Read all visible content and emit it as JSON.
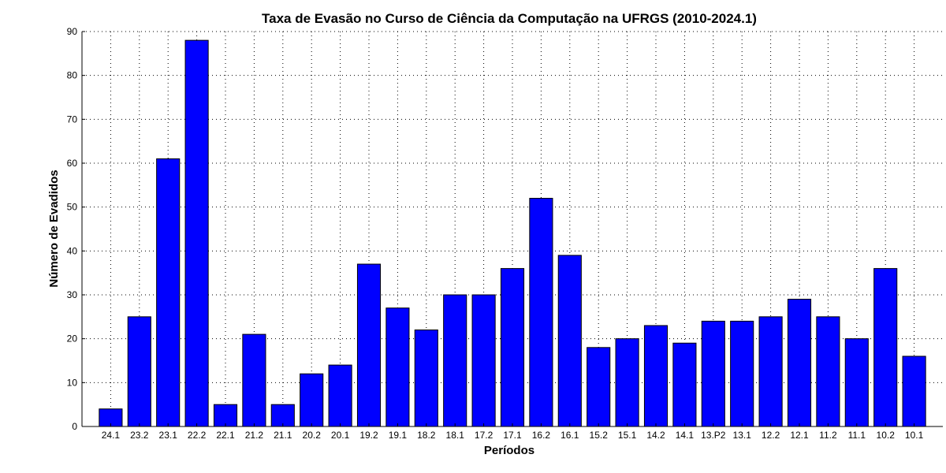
{
  "chart_data": {
    "type": "bar",
    "title": "Taxa de Evasão no Curso de Ciência da Computação na UFRGS (2010-2024.1)",
    "xlabel": "Períodos",
    "ylabel": "Número de Evadidos",
    "categories": [
      "24.1",
      "23.2",
      "23.1",
      "22.2",
      "22.1",
      "21.2",
      "21.1",
      "20.2",
      "20.1",
      "19.2",
      "19.1",
      "18.2",
      "18.1",
      "17.2",
      "17.1",
      "16.2",
      "16.1",
      "15.2",
      "15.1",
      "14.2",
      "14.1",
      "13.P2",
      "13.1",
      "12.2",
      "12.1",
      "11.2",
      "11.1",
      "10.2",
      "10.1"
    ],
    "values": [
      4,
      25,
      61,
      88,
      5,
      21,
      5,
      12,
      14,
      37,
      27,
      22,
      30,
      30,
      36,
      52,
      39,
      18,
      20,
      23,
      19,
      24,
      24,
      25,
      29,
      25,
      20,
      36,
      16
    ],
    "ylim": [
      0,
      90
    ],
    "yticks": [
      0,
      10,
      20,
      30,
      40,
      50,
      60,
      70,
      80,
      90
    ],
    "grid": true,
    "bar_color": "#0000ff"
  }
}
